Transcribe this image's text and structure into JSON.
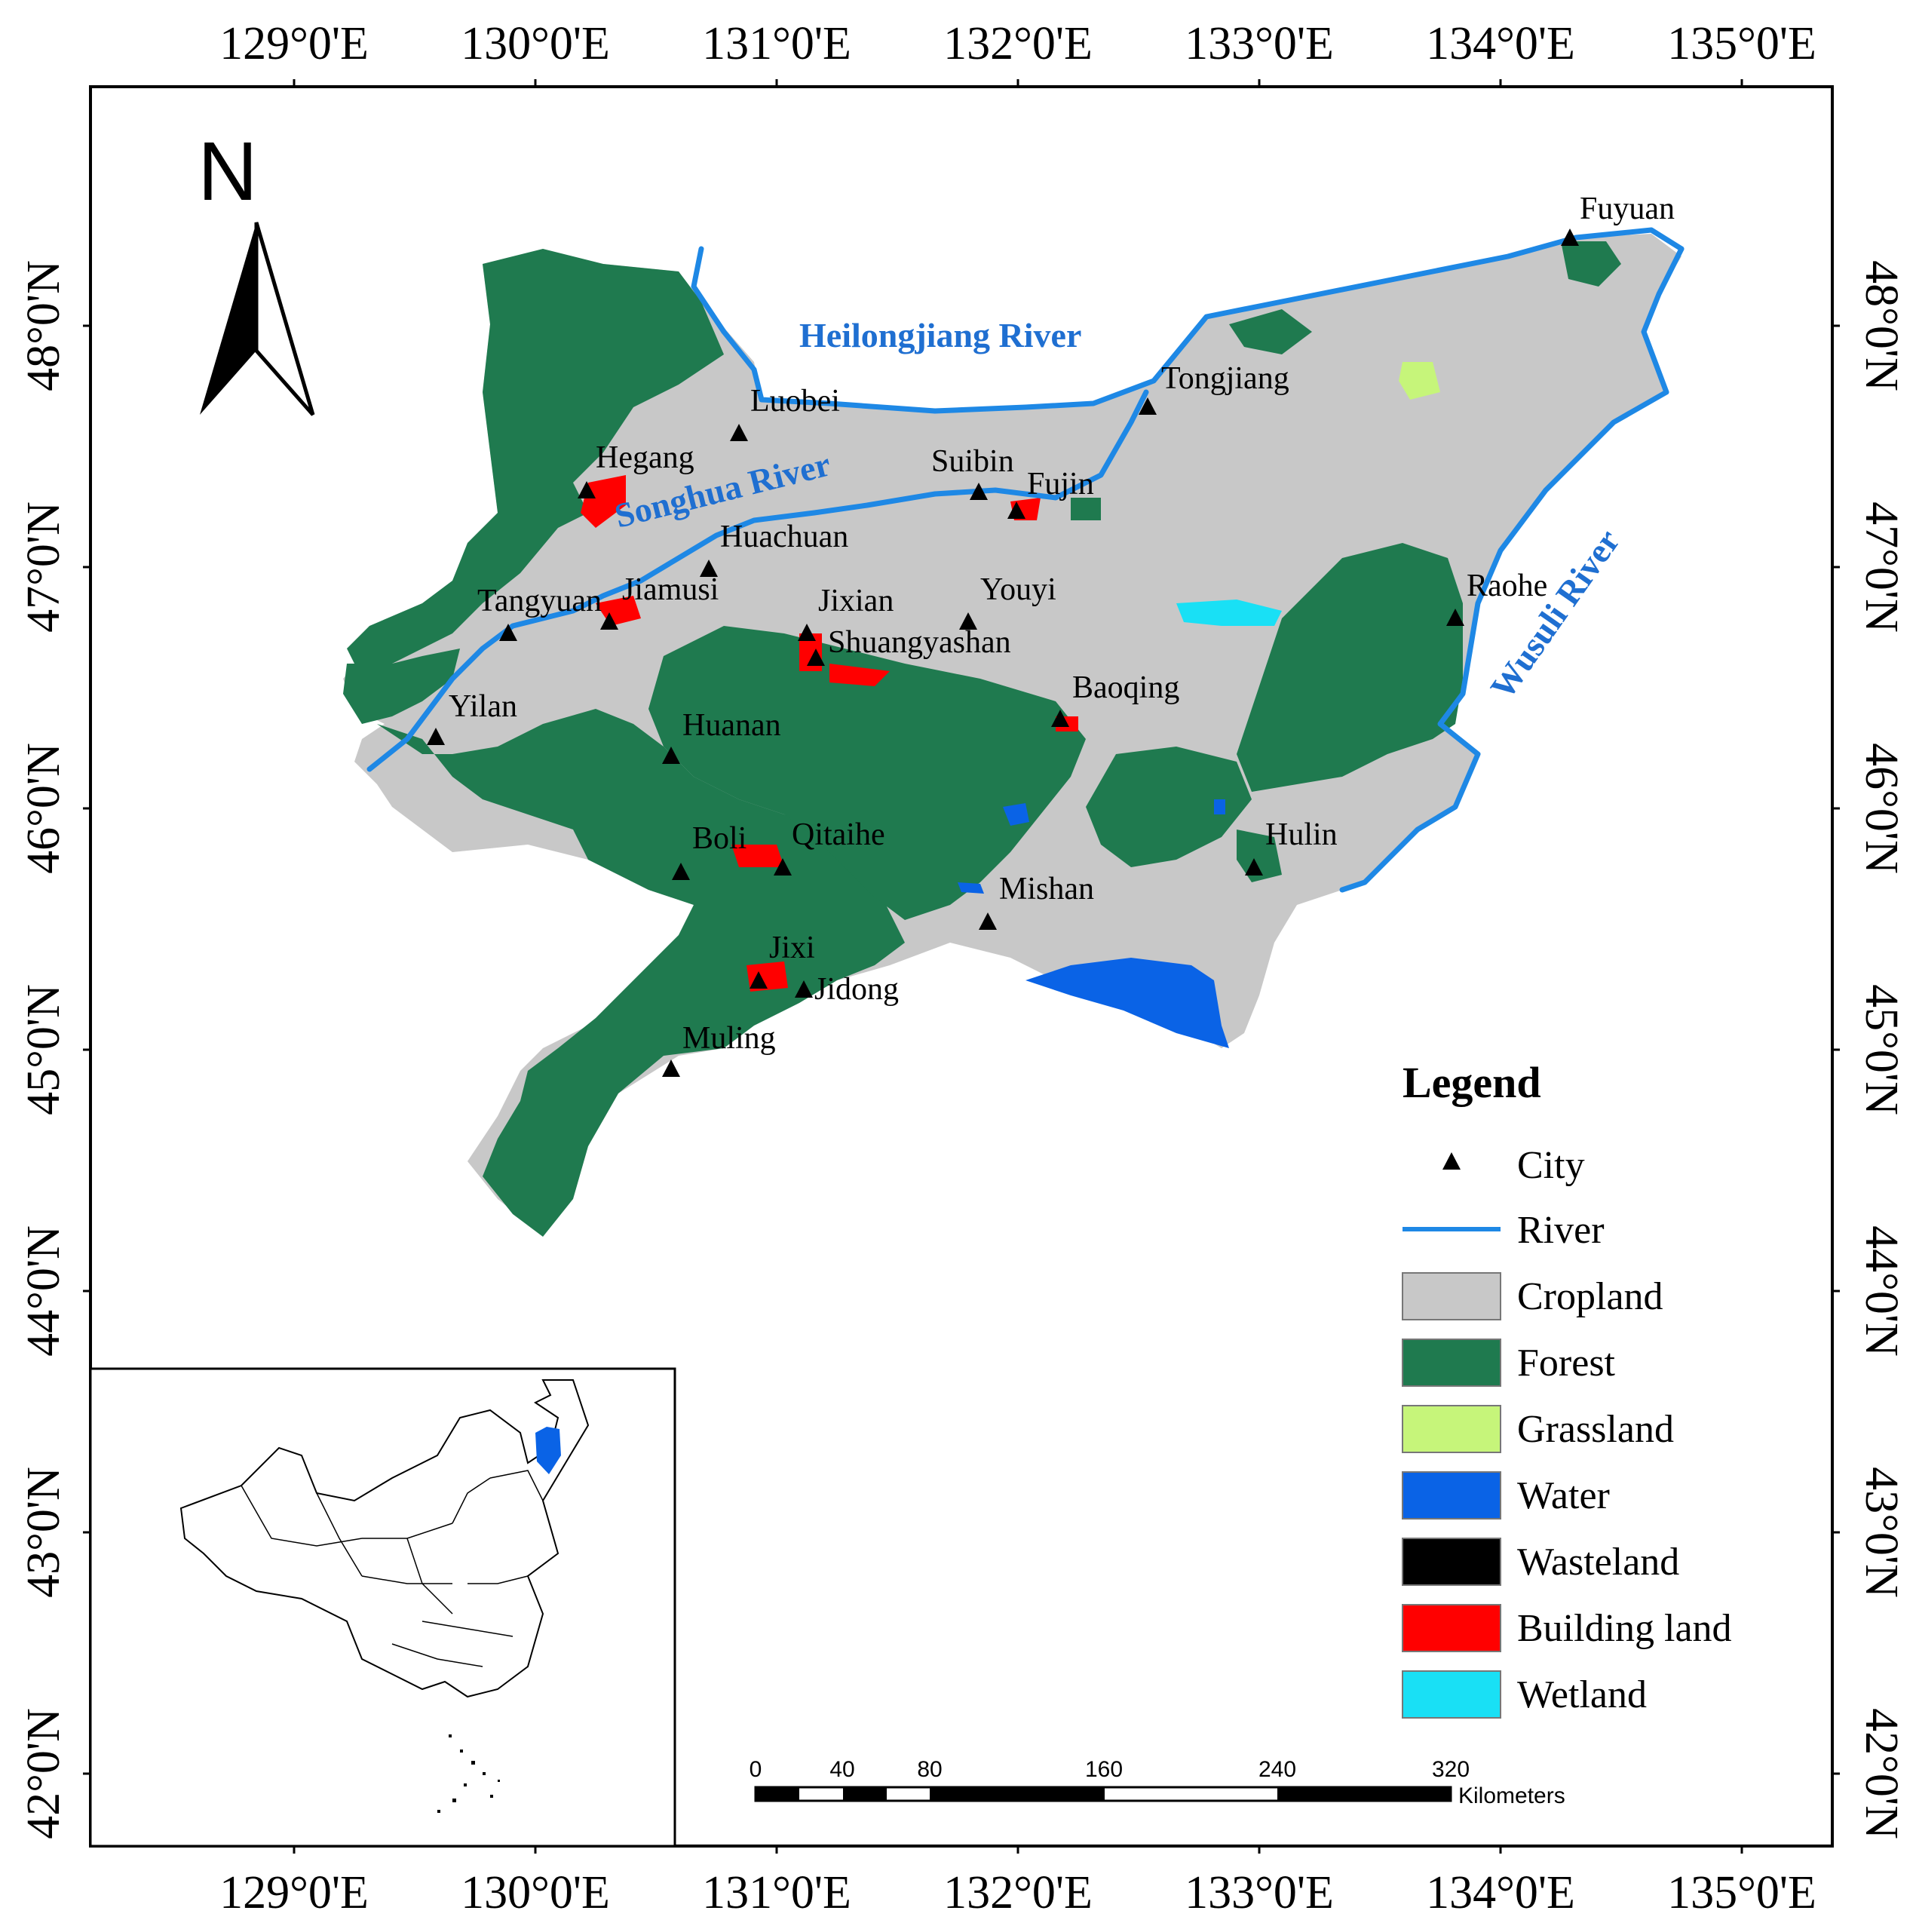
{
  "axes": {
    "lon_labels": [
      "129°0'E",
      "130°0'E",
      "131°0'E",
      "132°0'E",
      "133°0'E",
      "134°0'E",
      "135°0'E"
    ],
    "lat_labels": [
      "48°0'N",
      "47°0'N",
      "46°0'N",
      "45°0'N",
      "44°0'N",
      "43°0'N",
      "42°0'N"
    ]
  },
  "north_arrow": {
    "label": "N"
  },
  "rivers": {
    "heilongjiang": "Heilongjiang River",
    "songhua": "Songhua River",
    "wusuli": "Wusuli River"
  },
  "cities": {
    "fuyuan": "Fuyuan",
    "tongjiang": "Tongjiang",
    "luobei": "Luobei",
    "hegang": "Hegang",
    "suibin": "Suibin",
    "fujin": "Fujin",
    "huachuan": "Huachuan",
    "jiamusi": "Jiamusi",
    "tangyuan": "Tangyuan",
    "jixian": "Jixian",
    "youyi": "Youyi",
    "shuangyashan": "Shuangyashan",
    "raohe": "Raohe",
    "yilan": "Yilan",
    "huanan": "Huanan",
    "baoqing": "Baoqing",
    "boli": "Boli",
    "qitaihe": "Qitaihe",
    "hulin": "Hulin",
    "mishan": "Mishan",
    "jixi": "Jixi",
    "jidong": "Jidong",
    "muling": "Muling"
  },
  "legend": {
    "title": "Legend",
    "items": [
      {
        "label": "City",
        "color": "#000000"
      },
      {
        "label": "River",
        "color": "#1e88e5"
      },
      {
        "label": "Cropland",
        "color": "#c8c8c8"
      },
      {
        "label": "Forest",
        "color": "#1f7a4f"
      },
      {
        "label": "Grassland",
        "color": "#c6f57a"
      },
      {
        "label": "Water",
        "color": "#0a63e6"
      },
      {
        "label": "Wasteland",
        "color": "#000000"
      },
      {
        "label": "Building land",
        "color": "#ff0000"
      },
      {
        "label": "Wetland",
        "color": "#19e0f5"
      }
    ]
  },
  "scale_bar": {
    "ticks": [
      "0",
      "40",
      "80",
      "160",
      "240",
      "320"
    ],
    "unit": "Kilometers"
  }
}
